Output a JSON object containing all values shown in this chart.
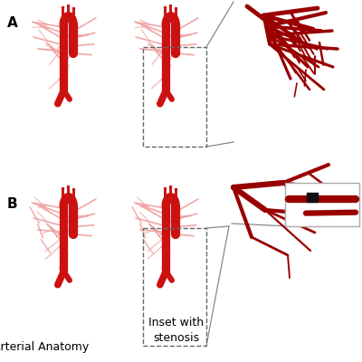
{
  "background_color": "#ffffff",
  "label_A": "A",
  "label_B": "B",
  "text_anatomy": "Arterial Anatomy",
  "text_inset": "Inset with\nstenosis",
  "artery_red": "#cc1111",
  "artery_light": "#e87070",
  "artery_pale": "#f0a0a0",
  "dark_red": "#990000",
  "black": "#111111",
  "dashed_color": "#666666",
  "connector_color": "#888888",
  "inset_edge": "#aaaaaa",
  "font_size_label": 11,
  "font_size_text": 9,
  "figsize": [
    4.0,
    4.0
  ],
  "dpi": 100
}
